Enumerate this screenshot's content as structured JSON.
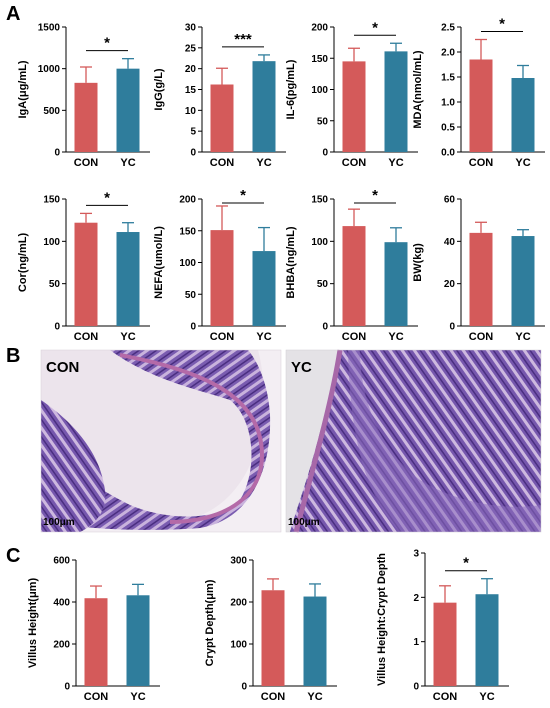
{
  "panels": {
    "A": "A",
    "B": "B",
    "C": "C"
  },
  "colors": {
    "CON": "#d45a5a",
    "YC": "#2f7d9c"
  },
  "histology": [
    {
      "label": "CON",
      "scale": "100μm"
    },
    {
      "label": "YC",
      "scale": "100μm"
    }
  ],
  "chart_data": [
    {
      "type": "bar",
      "ylabel": "IgA(μg/mL)",
      "categories": [
        "CON",
        "YC"
      ],
      "values": [
        830,
        1000
      ],
      "errors": [
        190,
        120
      ],
      "ylim": [
        0,
        1500
      ],
      "ticks": [
        0,
        500,
        1000,
        1500
      ],
      "sig": "*"
    },
    {
      "type": "bar",
      "ylabel": "IgG(g/L)",
      "categories": [
        "CON",
        "YC"
      ],
      "values": [
        16.2,
        21.8
      ],
      "errors": [
        3.9,
        1.5
      ],
      "ylim": [
        0,
        30
      ],
      "ticks": [
        0,
        5,
        10,
        15,
        20,
        25,
        30
      ],
      "sig": "***"
    },
    {
      "type": "bar",
      "ylabel": "IL-6(pg/mL)",
      "categories": [
        "CON",
        "YC"
      ],
      "values": [
        145,
        161
      ],
      "errors": [
        21,
        13
      ],
      "ylim": [
        0,
        200
      ],
      "ticks": [
        0,
        50,
        100,
        150,
        200
      ],
      "sig": "*"
    },
    {
      "type": "bar",
      "ylabel": "MDA(nmol/mL)",
      "categories": [
        "CON",
        "YC"
      ],
      "values": [
        1.85,
        1.48
      ],
      "errors": [
        0.4,
        0.25
      ],
      "ylim": [
        0,
        2.5
      ],
      "ticks": [
        0.0,
        0.5,
        1.0,
        1.5,
        2.0,
        2.5
      ],
      "sig": "*"
    },
    {
      "type": "bar",
      "ylabel": "Cor(ng/mL)",
      "categories": [
        "CON",
        "YC"
      ],
      "values": [
        122,
        111
      ],
      "errors": [
        11,
        11
      ],
      "ylim": [
        0,
        150
      ],
      "ticks": [
        0,
        50,
        100,
        150
      ],
      "sig": "*"
    },
    {
      "type": "bar",
      "ylabel": "NEFA(umol/L)",
      "categories": [
        "CON",
        "YC"
      ],
      "values": [
        151,
        118
      ],
      "errors": [
        38,
        37
      ],
      "ylim": [
        0,
        200
      ],
      "ticks": [
        0,
        50,
        100,
        150,
        200
      ],
      "sig": "*"
    },
    {
      "type": "bar",
      "ylabel": "BHBA(ng/mL)",
      "categories": [
        "CON",
        "YC"
      ],
      "values": [
        118,
        99
      ],
      "errors": [
        20,
        17
      ],
      "ylim": [
        0,
        150
      ],
      "ticks": [
        0,
        50,
        100,
        150
      ],
      "sig": "*"
    },
    {
      "type": "bar",
      "ylabel": "BW(kg)",
      "categories": [
        "CON",
        "YC"
      ],
      "values": [
        44,
        42.5
      ],
      "errors": [
        5,
        3
      ],
      "ylim": [
        0,
        60
      ],
      "ticks": [
        0,
        20,
        40,
        60
      ],
      "sig": ""
    },
    {
      "type": "bar",
      "ylabel": "Villus Height(μm)",
      "categories": [
        "CON",
        "YC"
      ],
      "values": [
        418,
        432
      ],
      "errors": [
        58,
        52
      ],
      "ylim": [
        0,
        600
      ],
      "ticks": [
        0,
        200,
        400,
        600
      ],
      "sig": ""
    },
    {
      "type": "bar",
      "ylabel": "Crypt Depth(μm)",
      "categories": [
        "CON",
        "YC"
      ],
      "values": [
        228,
        213
      ],
      "errors": [
        27,
        30
      ],
      "ylim": [
        0,
        300
      ],
      "ticks": [
        0,
        100,
        200,
        300
      ],
      "sig": ""
    },
    {
      "type": "bar",
      "ylabel": "Villus Height:Crypt Depth",
      "categories": [
        "CON",
        "YC"
      ],
      "values": [
        1.88,
        2.07
      ],
      "errors": [
        0.38,
        0.35
      ],
      "ylim": [
        0,
        3
      ],
      "ticks": [
        0,
        1,
        2,
        3
      ],
      "sig": "*"
    }
  ]
}
